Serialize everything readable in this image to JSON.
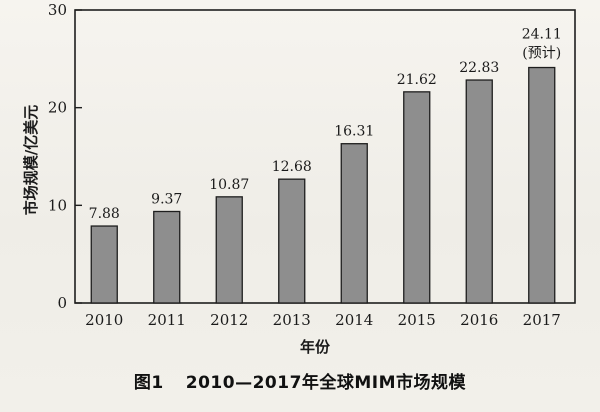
{
  "figure": {
    "label": "图1",
    "caption": "2010—2017年全球MIM市场规模"
  },
  "chart_data": {
    "type": "bar",
    "title": "",
    "xlabel": "年份",
    "ylabel": "市场规模/亿美元",
    "categories": [
      "2010",
      "2011",
      "2012",
      "2013",
      "2014",
      "2015",
      "2016",
      "2017"
    ],
    "values": [
      7.88,
      9.37,
      10.87,
      12.68,
      16.31,
      21.62,
      22.83,
      24.11
    ],
    "data_labels": [
      "7.88",
      "9.37",
      "10.87",
      "12.68",
      "16.31",
      "21.62",
      "22.83",
      "24.11"
    ],
    "annotations": [
      {
        "category": "2017",
        "text": "(预计)"
      }
    ],
    "y_ticks": [
      0,
      10,
      20,
      30
    ],
    "y_tick_labels": [
      "0",
      "10",
      "20",
      "30"
    ],
    "ylim": [
      0,
      30
    ],
    "grid": false,
    "legend": "none",
    "colors": {
      "bar_fill": "#8e8e8e",
      "bar_stroke": "#1e1e1e",
      "axis": "#1e1e1e"
    }
  }
}
